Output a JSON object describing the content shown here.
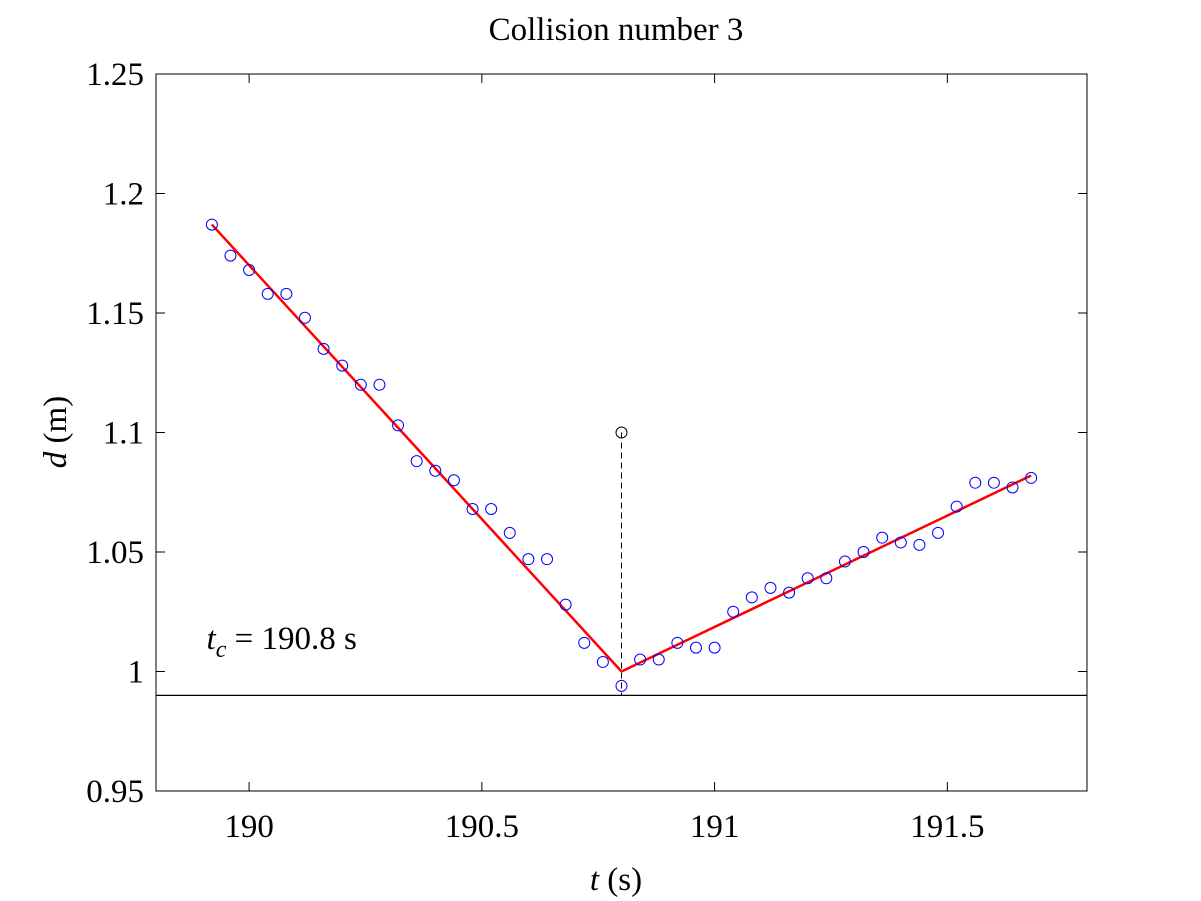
{
  "chart_data": {
    "type": "scatter",
    "title": "Collision number 3",
    "xlabel": {
      "var": "t",
      "unit": " (s)"
    },
    "ylabel": {
      "var": "d",
      "unit": " (m)"
    },
    "xlim": [
      189.8,
      191.8
    ],
    "ylim": [
      0.95,
      1.25
    ],
    "xticks": [
      190,
      190.5,
      191,
      191.5
    ],
    "xtick_labels": [
      "190",
      "190.5",
      "191",
      "191.5"
    ],
    "yticks": [
      0.95,
      1,
      1.05,
      1.1,
      1.15,
      1.2,
      1.25
    ],
    "ytick_labels": [
      "0.95",
      "1",
      "1.05",
      "1.1",
      "1.15",
      "1.2",
      "1.25"
    ],
    "grid": false,
    "annotation": {
      "var": "t",
      "sub": "c",
      "text": " = 190.8 s",
      "x": 189.9,
      "y": 1.014
    },
    "series": [
      {
        "marker": "circle",
        "color": "#0000ff",
        "points": [
          [
            189.92,
            1.187
          ],
          [
            189.96,
            1.174
          ],
          [
            190.0,
            1.168
          ],
          [
            190.04,
            1.158
          ],
          [
            190.08,
            1.158
          ],
          [
            190.12,
            1.148
          ],
          [
            190.16,
            1.135
          ],
          [
            190.2,
            1.128
          ],
          [
            190.24,
            1.12
          ],
          [
            190.28,
            1.12
          ],
          [
            190.32,
            1.103
          ],
          [
            190.36,
            1.088
          ],
          [
            190.4,
            1.084
          ],
          [
            190.44,
            1.08
          ],
          [
            190.48,
            1.068
          ],
          [
            190.52,
            1.068
          ],
          [
            190.56,
            1.058
          ],
          [
            190.6,
            1.047
          ],
          [
            190.64,
            1.047
          ],
          [
            190.68,
            1.028
          ],
          [
            190.72,
            1.012
          ],
          [
            190.76,
            1.004
          ],
          [
            190.8,
            0.994
          ],
          [
            190.84,
            1.005
          ],
          [
            190.88,
            1.005
          ],
          [
            190.92,
            1.012
          ],
          [
            190.96,
            1.01
          ],
          [
            191.0,
            1.01
          ],
          [
            191.04,
            1.025
          ],
          [
            191.08,
            1.031
          ],
          [
            191.12,
            1.035
          ],
          [
            191.16,
            1.033
          ],
          [
            191.2,
            1.039
          ],
          [
            191.24,
            1.039
          ],
          [
            191.28,
            1.046
          ],
          [
            191.32,
            1.05
          ],
          [
            191.36,
            1.056
          ],
          [
            191.4,
            1.054
          ],
          [
            191.44,
            1.053
          ],
          [
            191.48,
            1.058
          ],
          [
            191.52,
            1.069
          ],
          [
            191.56,
            1.079
          ],
          [
            191.6,
            1.079
          ],
          [
            191.64,
            1.077
          ],
          [
            191.68,
            1.081
          ]
        ]
      }
    ],
    "fit_lines": [
      {
        "color": "#ff0000",
        "points": [
          [
            189.92,
            1.187
          ],
          [
            190.8,
            1.0
          ]
        ]
      },
      {
        "color": "#ff0000",
        "points": [
          [
            190.8,
            1.0
          ],
          [
            191.68,
            1.082
          ]
        ]
      }
    ],
    "collision_marker": {
      "x": 190.8,
      "y_top": 1.1,
      "y_bottom": 0.99,
      "color": "#000000"
    },
    "threshold_line": {
      "y": 0.99,
      "color": "#000000"
    }
  }
}
